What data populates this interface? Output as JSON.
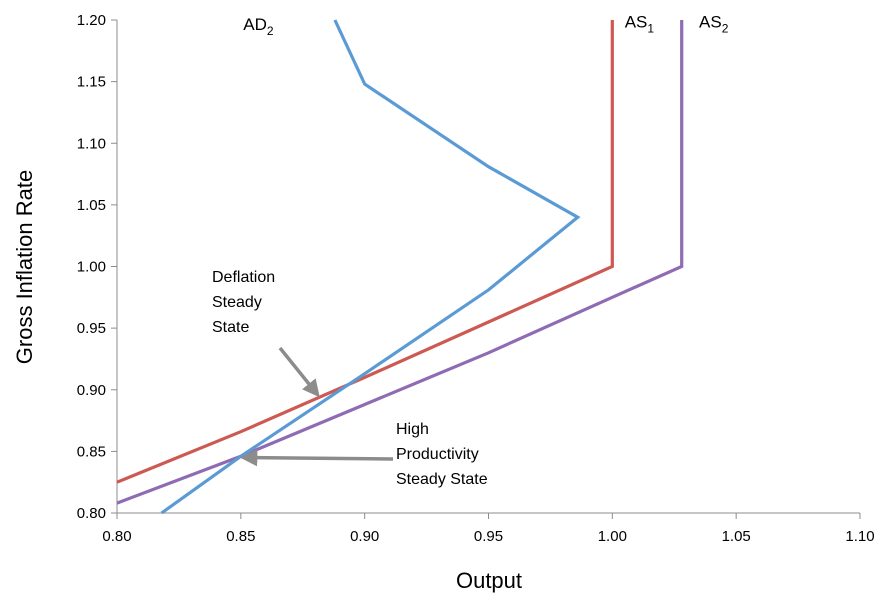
{
  "chart_data": {
    "type": "line",
    "xlabel": "Output",
    "ylabel": "Gross Inflation Rate",
    "xlim": [
      0.8,
      1.1
    ],
    "ylim": [
      0.8,
      1.2
    ],
    "x_ticks": [
      "0.80",
      "0.85",
      "0.90",
      "0.95",
      "1.00",
      "1.05",
      "1.10"
    ],
    "y_ticks": [
      "0.80",
      "0.85",
      "0.90",
      "0.95",
      "1.00",
      "1.05",
      "1.10",
      "1.15",
      "1.20"
    ],
    "grid": false,
    "series": [
      {
        "name": "AS1",
        "label_main": "AS",
        "label_sub": "1",
        "color": "#cc5a52",
        "points": [
          [
            0.8,
            0.825
          ],
          [
            0.85,
            0.866
          ],
          [
            0.9,
            0.91
          ],
          [
            0.95,
            0.955
          ],
          [
            1.0,
            1.0
          ],
          [
            1.0,
            1.2
          ]
        ]
      },
      {
        "name": "AS2",
        "label_main": "AS",
        "label_sub": "2",
        "color": "#8f6bb3",
        "points": [
          [
            0.8,
            0.808
          ],
          [
            0.85,
            0.846
          ],
          [
            0.9,
            0.888
          ],
          [
            0.95,
            0.93
          ],
          [
            1.0,
            0.975
          ],
          [
            1.028,
            1.0
          ],
          [
            1.028,
            1.2
          ]
        ]
      },
      {
        "name": "AD2",
        "label_main": "AD",
        "label_sub": "2",
        "color": "#5b9bd5",
        "points": [
          [
            0.818,
            0.8
          ],
          [
            0.85,
            0.846
          ],
          [
            0.9,
            0.913
          ],
          [
            0.95,
            0.981
          ],
          [
            0.986,
            1.04
          ],
          [
            0.95,
            1.081
          ],
          [
            0.9,
            1.148
          ],
          [
            0.888,
            1.2
          ]
        ]
      }
    ],
    "annotations": [
      {
        "lines": [
          "Deflation",
          "Steady",
          "State"
        ],
        "target": [
          0.881,
          0.896
        ]
      },
      {
        "lines": [
          "High",
          "Productivity",
          "Steady State"
        ],
        "target": [
          0.851,
          0.845
        ]
      }
    ]
  }
}
